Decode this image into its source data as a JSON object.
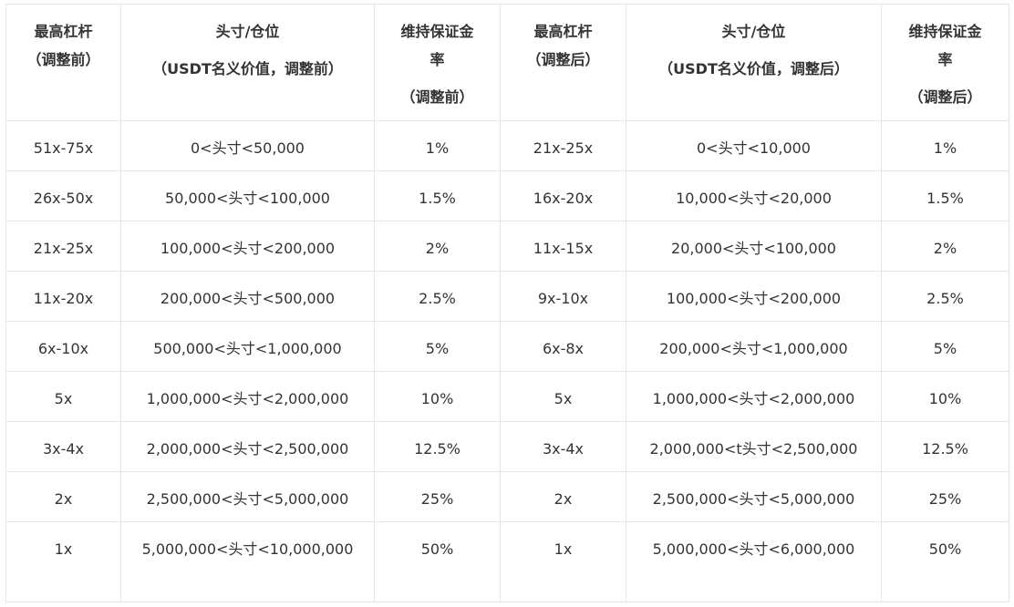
{
  "headers": [
    {
      "lines": [
        "最高杠杆",
        "（调整前）"
      ]
    },
    {
      "lines": [
        "头寸/仓位",
        "（USDT名义价值，调整前）"
      ]
    },
    {
      "lines": [
        "维持保证金",
        "率",
        "（调整前）"
      ]
    },
    {
      "lines": [
        "最高杠杆",
        "（调整后）"
      ]
    },
    {
      "lines": [
        "头寸/仓位",
        "（USDT名义价值，调整后）"
      ]
    },
    {
      "lines": [
        "维持保证金",
        "率",
        "（调整后）"
      ]
    }
  ],
  "rows": [
    [
      "51x-75x",
      "0<头寸<50,000",
      "1%",
      "21x-25x",
      "0<头寸<10,000",
      "1%"
    ],
    [
      "26x-50x",
      "50,000<头寸<100,000",
      "1.5%",
      "16x-20x",
      "10,000<头寸<20,000",
      "1.5%"
    ],
    [
      "21x-25x",
      "100,000<头寸<200,000",
      "2%",
      "11x-15x",
      "20,000<头寸<100,000",
      "2%"
    ],
    [
      "11x-20x",
      "200,000<头寸<500,000",
      "2.5%",
      "9x-10x",
      "100,000<头寸<200,000",
      "2.5%"
    ],
    [
      "6x-10x",
      "500,000<头寸<1,000,000",
      "5%",
      "6x-8x",
      "200,000<头寸<1,000,000",
      "5%"
    ],
    [
      "5x",
      "1,000,000<头寸<2,000,000",
      "10%",
      "5x",
      "1,000,000<头寸<2,000,000",
      "10%"
    ],
    [
      "3x-4x",
      "2,000,000<头寸<2,500,000",
      "12.5%",
      "3x-4x",
      "2,000,000<t头寸<2,500,000",
      "12.5%"
    ],
    [
      "2x",
      "2,500,000<头寸<5,000,000",
      "25%",
      "2x",
      "2,500,000<头寸<5,000,000",
      "25%"
    ],
    [
      "1x",
      "5,000,000<头寸<10,000,000",
      "50%",
      "1x",
      "5,000,000<头寸<6,000,000",
      "50%"
    ]
  ]
}
